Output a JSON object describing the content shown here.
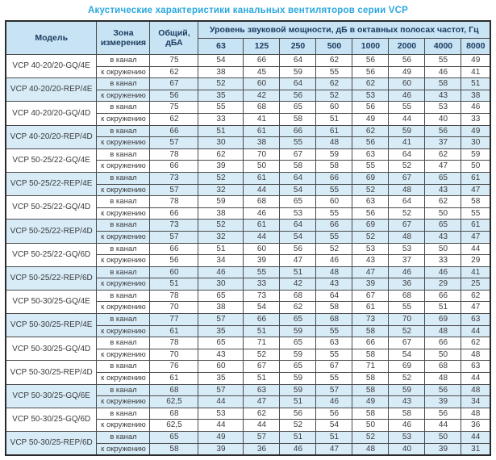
{
  "title": "Акустические характеристики канальных вентиляторов  серии VCP",
  "colors": {
    "title": "#2aa7dd",
    "header_bg": "#c8e4f4",
    "row_alt_bg": "#d8ecf8",
    "border": "#4a4a4a",
    "outer_border": "#2b2b2b",
    "header_text": "#1c3c60",
    "cell_text": "#3b3b3b"
  },
  "table": {
    "headers": {
      "model": "Модель",
      "zone": "Зона измерения",
      "total": "Общий, дБА",
      "octave_group": "Уровень звуковой мощности, дБ в октавных полосах частот, Гц",
      "frequencies": [
        "63",
        "125",
        "250",
        "500",
        "1000",
        "2000",
        "4000",
        "8000"
      ]
    },
    "zone_labels": [
      "в канал",
      "к окружению"
    ],
    "models": [
      {
        "name": "VCP 40-20/20-GQ/4E",
        "shaded": false,
        "rows": [
          {
            "zone": "в канал",
            "total": "75",
            "levels": [
              54,
              66,
              64,
              62,
              56,
              56,
              55,
              49
            ]
          },
          {
            "zone": "к окружению",
            "total": "62",
            "levels": [
              38,
              45,
              59,
              55,
              56,
              49,
              46,
              41
            ]
          }
        ]
      },
      {
        "name": "VCP 40-20/20-REP/4E",
        "shaded": true,
        "rows": [
          {
            "zone": "в канал",
            "total": "67",
            "levels": [
              52,
              60,
              64,
              62,
              62,
              60,
              58,
              51
            ]
          },
          {
            "zone": "к окружению",
            "total": "56",
            "levels": [
              35,
              42,
              56,
              52,
              53,
              46,
              43,
              38
            ]
          }
        ]
      },
      {
        "name": "VCP 40-20/20-GQ/4D",
        "shaded": false,
        "rows": [
          {
            "zone": "в канал",
            "total": "75",
            "levels": [
              55,
              68,
              65,
              60,
              56,
              55,
              53,
              46
            ]
          },
          {
            "zone": "к окружению",
            "total": "62",
            "levels": [
              33,
              41,
              58,
              51,
              49,
              44,
              40,
              33
            ]
          }
        ]
      },
      {
        "name": "VCP 40-20/20-REP/4D",
        "shaded": true,
        "rows": [
          {
            "zone": "в канал",
            "total": "66",
            "levels": [
              51,
              61,
              66,
              61,
              62,
              59,
              56,
              49
            ]
          },
          {
            "zone": "к окружению",
            "total": "57",
            "levels": [
              30,
              38,
              55,
              48,
              56,
              41,
              37,
              30
            ]
          }
        ]
      },
      {
        "name": "VCP 50-25/22-GQ/4E",
        "shaded": false,
        "rows": [
          {
            "zone": "в канал",
            "total": "78",
            "levels": [
              62,
              70,
              67,
              59,
              63,
              64,
              62,
              59
            ]
          },
          {
            "zone": "к окружению",
            "total": "66",
            "levels": [
              39,
              50,
              58,
              58,
              55,
              52,
              47,
              50
            ]
          }
        ]
      },
      {
        "name": "VCP 50-25/22-REP/4E",
        "shaded": true,
        "rows": [
          {
            "zone": "в канал",
            "total": "73",
            "levels": [
              52,
              61,
              64,
              66,
              69,
              67,
              65,
              61
            ]
          },
          {
            "zone": "к окружению",
            "total": "57",
            "levels": [
              32,
              44,
              54,
              55,
              52,
              48,
              43,
              47
            ]
          }
        ]
      },
      {
        "name": "VCP 50-25/22-GQ/4D",
        "shaded": false,
        "rows": [
          {
            "zone": "в канал",
            "total": "78",
            "levels": [
              59,
              68,
              65,
              60,
              63,
              64,
              62,
              58
            ]
          },
          {
            "zone": "к окружению",
            "total": "66",
            "levels": [
              38,
              46,
              53,
              55,
              56,
              52,
              50,
              55
            ]
          }
        ]
      },
      {
        "name": "VCP 50-25/22-REP/4D",
        "shaded": true,
        "rows": [
          {
            "zone": "в канал",
            "total": "73",
            "levels": [
              52,
              61,
              64,
              66,
              69,
              67,
              65,
              61
            ]
          },
          {
            "zone": "к окружению",
            "total": "57",
            "levels": [
              32,
              44,
              54,
              55,
              52,
              48,
              43,
              47
            ]
          }
        ]
      },
      {
        "name": "VCP 50-25/22-GQ/6D",
        "shaded": false,
        "rows": [
          {
            "zone": "в канал",
            "total": "66",
            "levels": [
              51,
              60,
              56,
              52,
              53,
              53,
              50,
              44
            ]
          },
          {
            "zone": "к окружению",
            "total": "56",
            "levels": [
              34,
              39,
              47,
              46,
              43,
              37,
              33,
              29
            ]
          }
        ]
      },
      {
        "name": "VCP 50-25/22-REP/6D",
        "shaded": true,
        "rows": [
          {
            "zone": "в канал",
            "total": "60",
            "levels": [
              46,
              55,
              51,
              48,
              47,
              46,
              46,
              41
            ]
          },
          {
            "zone": "к окружению",
            "total": "51",
            "levels": [
              30,
              33,
              42,
              43,
              39,
              36,
              29,
              25
            ]
          }
        ]
      },
      {
        "name": "VCP 50-30/25-GQ/4E",
        "shaded": false,
        "rows": [
          {
            "zone": "в канал",
            "total": "78",
            "levels": [
              65,
              73,
              68,
              64,
              67,
              68,
              66,
              62
            ]
          },
          {
            "zone": "к окружению",
            "total": "70",
            "levels": [
              38,
              54,
              62,
              58,
              61,
              55,
              51,
              47
            ]
          }
        ]
      },
      {
        "name": "VCP 50-30/25-REP/4E",
        "shaded": true,
        "rows": [
          {
            "zone": "в канал",
            "total": "77",
            "levels": [
              57,
              66,
              65,
              68,
              73,
              70,
              69,
              63
            ]
          },
          {
            "zone": "к окружению",
            "total": "61",
            "levels": [
              35,
              51,
              59,
              55,
              58,
              52,
              48,
              44
            ]
          }
        ]
      },
      {
        "name": "VCP 50-30/25-GQ/4D",
        "shaded": false,
        "rows": [
          {
            "zone": "в канал",
            "total": "78",
            "levels": [
              65,
              71,
              65,
              63,
              66,
              67,
              66,
              62
            ]
          },
          {
            "zone": "к окружению",
            "total": "70",
            "levels": [
              43,
              52,
              59,
              55,
              58,
              54,
              50,
              48
            ]
          }
        ]
      },
      {
        "name": "VCP 50-30/25-REP/4D",
        "shaded": false,
        "rows": [
          {
            "zone": "в канал",
            "total": "76",
            "levels": [
              60,
              67,
              65,
              67,
              71,
              69,
              68,
              63
            ]
          },
          {
            "zone": "к окружению",
            "total": "61",
            "levels": [
              35,
              51,
              59,
              55,
              58,
              52,
              48,
              44
            ]
          }
        ]
      },
      {
        "name": "VCP 50-30/25-GQ/6E",
        "shaded": true,
        "rows": [
          {
            "zone": "в канал",
            "total": "68",
            "levels": [
              57,
              63,
              59,
              57,
              58,
              59,
              56,
              48
            ]
          },
          {
            "zone": "к окружению",
            "total": "62,5",
            "levels": [
              44,
              47,
              51,
              46,
              49,
              43,
              39,
              34
            ]
          }
        ]
      },
      {
        "name": "VCP 50-30/25-GQ/6D",
        "shaded": false,
        "rows": [
          {
            "zone": "в канал",
            "total": "68",
            "levels": [
              53,
              62,
              56,
              56,
              58,
              58,
              56,
              48
            ]
          },
          {
            "zone": "к окружению",
            "total": "62,5",
            "levels": [
              44,
              44,
              52,
              54,
              50,
              46,
              44,
              36
            ]
          }
        ]
      },
      {
        "name": "VCP 50-30/25-REP/6D",
        "shaded": true,
        "rows": [
          {
            "zone": "в канал",
            "total": "65",
            "levels": [
              49,
              57,
              51,
              51,
              52,
              53,
              50,
              44
            ]
          },
          {
            "zone": "к окружению",
            "total": "58",
            "levels": [
              39,
              36,
              46,
              47,
              48,
              40,
              39,
              31
            ]
          }
        ]
      }
    ]
  }
}
